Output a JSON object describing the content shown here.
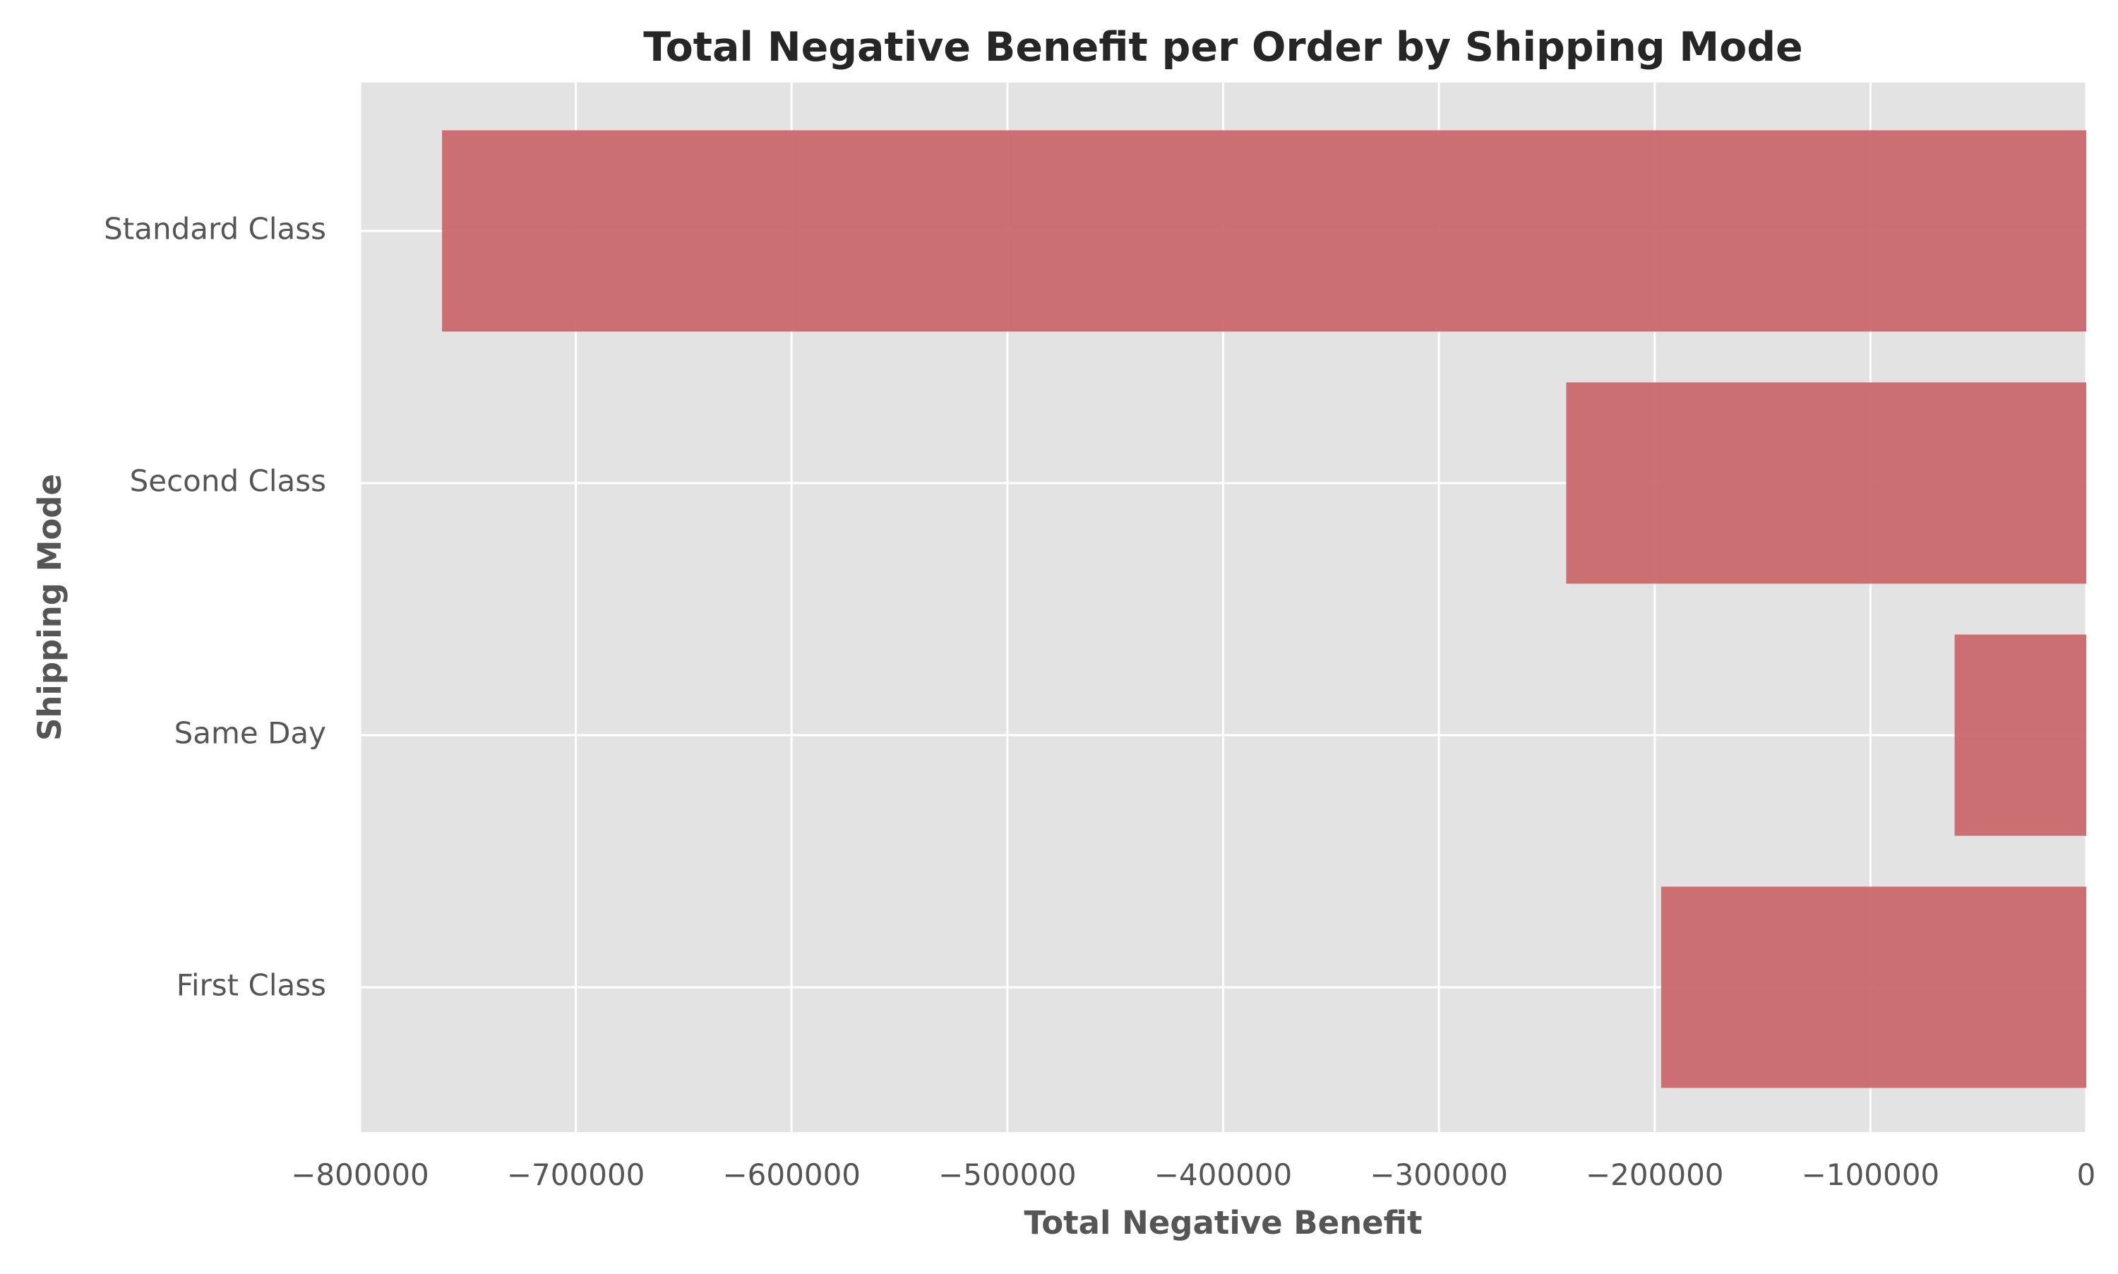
{
  "colors": {
    "background": "#ffffff",
    "plot_background": "#e4e3e4",
    "grid": "#ffffff",
    "bar": "#c9686d",
    "title": "#262626",
    "label": "#555555"
  },
  "chart_data": {
    "type": "bar",
    "orientation": "horizontal",
    "title": "Total Negative Benefit per Order by Shipping Mode",
    "xlabel": "Total Negative Benefit",
    "ylabel": "Shipping Mode",
    "categories": [
      "Standard Class",
      "Second Class",
      "Same Day",
      "First Class"
    ],
    "values": [
      -762000,
      -241000,
      -61000,
      -197000
    ],
    "xlim": [
      -800000,
      0
    ],
    "xticks": [
      -800000,
      -700000,
      -600000,
      -500000,
      -400000,
      -300000,
      -200000,
      -100000,
      0
    ],
    "xtick_labels": [
      "−800000",
      "−700000",
      "−600000",
      "−500000",
      "−400000",
      "−300000",
      "−200000",
      "−100000",
      "0"
    ],
    "grid": true,
    "legend": false
  }
}
